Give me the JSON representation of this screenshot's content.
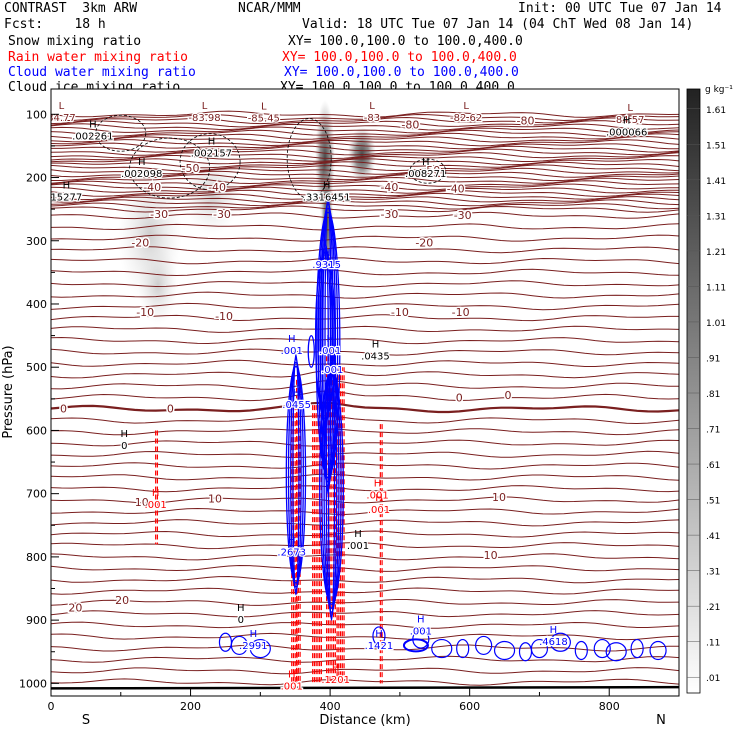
{
  "header": {
    "title": "CONTRAST  3km ARW",
    "center": "NCAR/MMM",
    "init": "Init: 00 UTC Tue 07 Jan 14",
    "fcst": "Fcst:    18 h",
    "valid": "Valid: 18 UTC Tue 07 Jan 14 (04 ChT Wed 08 Jan 14)",
    "fields": [
      {
        "name": "Snow mixing ratio",
        "xy": "XY= 100.0,100.0 to 100.0,400.0",
        "color": "#000000"
      },
      {
        "name": "Rain water mixing ratio",
        "xy": "XY= 100.0,100.0 to 100.0,400.0",
        "color": "#ff0000"
      },
      {
        "name": "Cloud water mixing ratio",
        "xy": "XY= 100.0,100.0 to 100.0,400.0",
        "color": "#0000ff"
      },
      {
        "name": "Cloud ice mixing ratio",
        "xy": "XY= 100.0,100.0 to 100.0,400.0",
        "color": "#000000"
      }
    ]
  },
  "chart_data": {
    "type": "cross-section contour",
    "xlabel": "Distance (km)",
    "ylabel": "Pressure (hPa)",
    "xlim": [
      0,
      900
    ],
    "ylim": [
      1020,
      60
    ],
    "x_ticks": [
      0,
      200,
      400,
      600,
      800
    ],
    "y_ticks": [
      100,
      200,
      300,
      400,
      500,
      600,
      700,
      800,
      900,
      1000
    ],
    "left_end_label": "S",
    "right_end_label": "N",
    "colorbar": {
      "unit": "g kg⁻¹",
      "ticks": [
        "1.61",
        "1.51",
        "1.41",
        "1.31",
        "1.21",
        "1.11",
        "1.01",
        ".91",
        ".81",
        ".71",
        ".61",
        ".51",
        ".41",
        ".31",
        ".21",
        ".11",
        ".01"
      ]
    },
    "temperature_contours": {
      "color": "#7a1f1f",
      "labels": [
        {
          "text": "-80",
          "x": 680,
          "p": 110
        },
        {
          "text": "-80",
          "x": 515,
          "p": 116
        },
        {
          "text": "-50",
          "x": 200,
          "p": 185
        },
        {
          "text": "-50",
          "x": 545,
          "p": 188
        },
        {
          "text": "-40",
          "x": 145,
          "p": 215
        },
        {
          "text": "-40",
          "x": 238,
          "p": 215
        },
        {
          "text": "-40",
          "x": 485,
          "p": 215
        },
        {
          "text": "-40",
          "x": 580,
          "p": 217
        },
        {
          "text": "-30",
          "x": 155,
          "p": 258
        },
        {
          "text": "-30",
          "x": 245,
          "p": 258
        },
        {
          "text": "-30",
          "x": 485,
          "p": 258
        },
        {
          "text": "-30",
          "x": 590,
          "p": 259
        },
        {
          "text": "-20",
          "x": 128,
          "p": 303
        },
        {
          "text": "-20",
          "x": 535,
          "p": 303
        },
        {
          "text": "-10",
          "x": 135,
          "p": 413
        },
        {
          "text": "-10",
          "x": 248,
          "p": 419
        },
        {
          "text": "-10",
          "x": 500,
          "p": 413
        },
        {
          "text": "-10",
          "x": 587,
          "p": 413
        },
        {
          "text": "0",
          "x": 18,
          "p": 565
        },
        {
          "text": "0",
          "x": 171,
          "p": 565
        },
        {
          "text": "0",
          "x": 585,
          "p": 548
        },
        {
          "text": "0",
          "x": 655,
          "p": 544
        },
        {
          "text": "10",
          "x": 130,
          "p": 713
        },
        {
          "text": "10",
          "x": 235,
          "p": 708
        },
        {
          "text": "10",
          "x": 642,
          "p": 705
        },
        {
          "text": "10",
          "x": 630,
          "p": 797
        },
        {
          "text": "20",
          "x": 35,
          "p": 880
        },
        {
          "text": "20",
          "x": 102,
          "p": 868
        }
      ]
    },
    "max_min_labels": [
      {
        "mark": "L",
        "value": "84.77",
        "x": 15,
        "p": 101
      },
      {
        "mark": "L",
        "value": "-83.98",
        "x": 220,
        "p": 101
      },
      {
        "mark": "L",
        "value": "-85.45",
        "x": 305,
        "p": 102
      },
      {
        "mark": "L",
        "value": "-83",
        "x": 460,
        "p": 101
      },
      {
        "mark": "L",
        "value": "-82.62",
        "x": 595,
        "p": 101
      },
      {
        "mark": "L",
        "value": "84.57",
        "x": 830,
        "p": 104
      },
      {
        "mark": "H",
        "value": ".002261",
        "x": 60,
        "p": 130
      },
      {
        "mark": "H",
        "value": ".002157",
        "x": 230,
        "p": 157
      },
      {
        "mark": "H",
        "value": ".002098",
        "x": 130,
        "p": 190
      },
      {
        "mark": "H",
        "value": ".008271",
        "x": 537,
        "p": 190
      },
      {
        "mark": "H",
        "value": ".000066",
        "x": 825,
        "p": 124
      },
      {
        "mark": "H",
        "value": ".3316451",
        "x": 395,
        "p": 227
      },
      {
        "mark": "H",
        "value": "15277",
        "x": 22,
        "p": 227
      },
      {
        "mark": "H",
        "value": ".9315",
        "x": 395,
        "p": 334
      },
      {
        "mark": "H",
        "value": ".001",
        "x": 345,
        "p": 470
      },
      {
        "mark": "H",
        "value": ".001",
        "x": 400,
        "p": 470
      },
      {
        "mark": "H",
        "value": ".0435",
        "x": 465,
        "p": 478
      },
      {
        "mark": "H",
        "value": ".001",
        "x": 403,
        "p": 500
      },
      {
        "mark": "H",
        "value": ".0455",
        "x": 352,
        "p": 555
      },
      {
        "mark": "H",
        "value": "0",
        "x": 105,
        "p": 620
      },
      {
        "mark": "H",
        "value": ".001",
        "x": 150,
        "p": 713
      },
      {
        "mark": "H",
        "value": ".001",
        "x": 468,
        "p": 698
      },
      {
        "mark": "H",
        "value": ".001",
        "x": 470,
        "p": 721
      },
      {
        "mark": "H",
        "value": ".001",
        "x": 440,
        "p": 778
      },
      {
        "mark": "H",
        "value": ".2673",
        "x": 345,
        "p": 788
      },
      {
        "mark": "H",
        "value": ".2991",
        "x": 290,
        "p": 936
      },
      {
        "mark": "H",
        "value": ".1421",
        "x": 470,
        "p": 936
      },
      {
        "mark": "H",
        "value": ".001",
        "x": 530,
        "p": 913
      },
      {
        "mark": "H",
        "value": ".4618",
        "x": 720,
        "p": 930
      },
      {
        "mark": "H",
        "value": ".001",
        "x": 345,
        "p": 1000
      },
      {
        "mark": "H",
        "value": ".1201",
        "x": 408,
        "p": 990
      },
      {
        "mark": "H",
        "value": "0",
        "x": 272,
        "p": 895
      }
    ]
  }
}
